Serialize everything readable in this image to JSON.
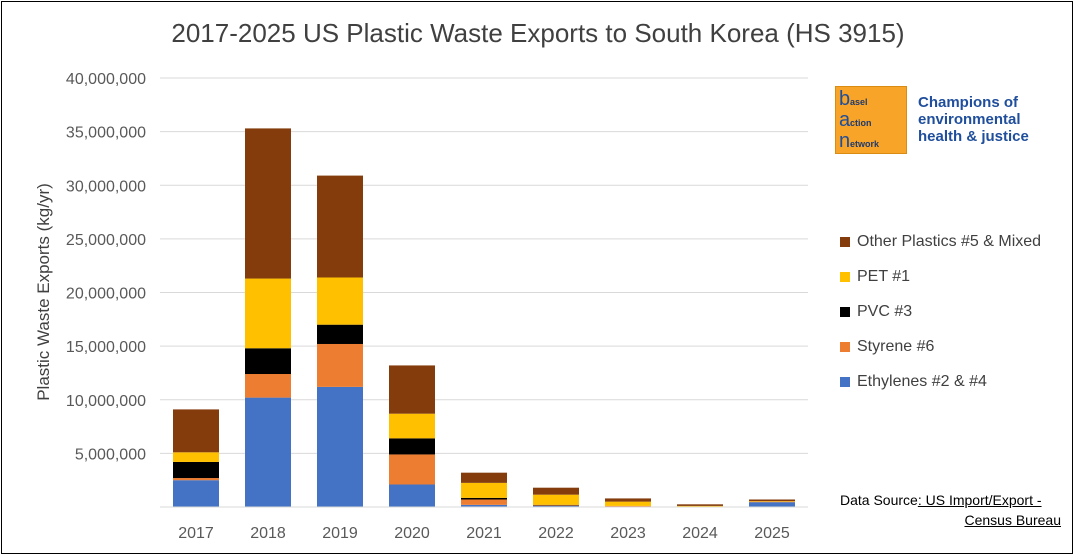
{
  "chart_data": {
    "type": "bar",
    "stacked": true,
    "title": "2017-2025 US Plastic Waste Exports to South Korea (HS 3915)",
    "ylabel": "Plastic Waste Exports (kg/yr)",
    "xlabel": "",
    "ylim": [
      0,
      40000000
    ],
    "yticks": [
      "40,000,000",
      "35,000,000",
      "30,000,000",
      "25,000,000",
      "20,000,000",
      "15,000,000",
      "10,000,000",
      "5,000,000"
    ],
    "grid": true,
    "legend_position": "right",
    "categories": [
      "2017",
      "2018",
      "2019",
      "2020",
      "2021",
      "2022",
      "2023",
      "2024",
      "2025"
    ],
    "series": [
      {
        "name": "Ethylenes #2 & #4",
        "color": "#4472c4",
        "values": [
          2500000,
          10200000,
          11200000,
          2100000,
          200000,
          100000,
          50000,
          30000,
          450000
        ]
      },
      {
        "name": "Styrene #6",
        "color": "#ed7d31",
        "values": [
          200000,
          2200000,
          4000000,
          2800000,
          500000,
          50000,
          50000,
          20000,
          50000
        ]
      },
      {
        "name": "PVC #3",
        "color": "#000000",
        "values": [
          1500000,
          2400000,
          1800000,
          1500000,
          150000,
          50000,
          0,
          0,
          0
        ]
      },
      {
        "name": "PET #1",
        "color": "#ffc000",
        "values": [
          900000,
          6500000,
          4400000,
          2300000,
          1400000,
          950000,
          400000,
          50000,
          50000
        ]
      },
      {
        "name": "Other Plastics #5 & Mixed",
        "color": "#843c0c",
        "values": [
          4000000,
          14000000,
          9500000,
          4500000,
          950000,
          650000,
          300000,
          150000,
          150000
        ]
      }
    ]
  },
  "legend_order": [
    4,
    3,
    2,
    1,
    0
  ],
  "logo": {
    "letters": [
      "b",
      "a",
      "n"
    ],
    "words": [
      "asel",
      "ction",
      "etwork"
    ],
    "tagline": "Champions of environmental health & justice"
  },
  "source": {
    "prefix": "Data Source",
    "link_line1": ": US Import/Export -",
    "link_line2": "Census Bureau"
  }
}
